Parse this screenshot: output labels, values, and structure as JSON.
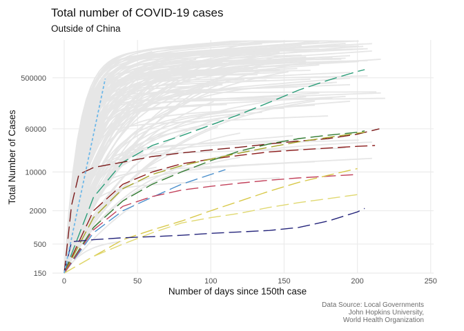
{
  "title": "Total number of COVID-19 cases",
  "subtitle": "Outside of China",
  "caption_lines": [
    "Data Source: Local Governments",
    "John Hopkins University,",
    "World Health Organization"
  ],
  "chart_data": {
    "type": "line",
    "title": "Total number of COVID-19 cases",
    "subtitle": "Outside of China",
    "xlabel": "Number of days since 150th case",
    "ylabel": "Total Number of Cases",
    "xlim": [
      -8,
      252
    ],
    "ylim": [
      150,
      2400000
    ],
    "y_scale": "log",
    "grid": true,
    "legend": "none",
    "x_ticks": [
      0,
      50,
      100,
      150,
      200,
      250
    ],
    "y_ticks": [
      150,
      500,
      2000,
      10000,
      60000,
      500000
    ],
    "x_tick_labels": [
      "0",
      "50",
      "100",
      "150",
      "200",
      "250"
    ],
    "y_tick_labels": [
      "150",
      "500",
      "2000",
      "10000",
      "60000",
      "500000"
    ],
    "colors": {
      "background_series": "#e6e6e6",
      "grid": "#ebebeb",
      "reference": "#6fb8e8"
    },
    "reference_line": {
      "style": "dashed",
      "x": [
        0,
        28
      ],
      "y": [
        150,
        480000
      ]
    },
    "highlighted_series": [
      {
        "color": "#2a9d78",
        "x": [
          0,
          20,
          40,
          60,
          80,
          100,
          120,
          140,
          160,
          180,
          200,
          205
        ],
        "y": [
          150,
          3500,
          15000,
          30000,
          45000,
          70000,
          110000,
          180000,
          300000,
          450000,
          650000,
          700000
        ]
      },
      {
        "color": "#7a1818",
        "x": [
          0,
          5,
          10,
          20,
          30,
          40,
          60,
          80,
          100,
          120,
          140,
          160,
          180,
          200,
          215
        ],
        "y": [
          150,
          2500,
          9000,
          12000,
          13500,
          15000,
          19000,
          22000,
          25000,
          28000,
          32000,
          36000,
          40000,
          48000,
          60000
        ]
      },
      {
        "color": "#8b1a1a",
        "x": [
          0,
          20,
          40,
          60,
          80,
          100,
          120,
          140,
          160,
          180,
          200,
          212
        ],
        "y": [
          150,
          2000,
          6000,
          10000,
          14000,
          17000,
          20000,
          23000,
          25000,
          27000,
          29000,
          30000
        ]
      },
      {
        "color": "#2f7a2f",
        "x": [
          0,
          20,
          40,
          60,
          80,
          100,
          120,
          140,
          160,
          180,
          200,
          205
        ],
        "y": [
          150,
          1000,
          3000,
          6000,
          10000,
          16000,
          24000,
          32000,
          40000,
          46000,
          52000,
          55000
        ]
      },
      {
        "color": "#a3a326",
        "x": [
          0,
          20,
          40,
          60,
          80,
          100,
          120,
          140,
          160,
          180,
          200,
          205
        ],
        "y": [
          150,
          1500,
          5000,
          9000,
          13000,
          17000,
          22000,
          28000,
          35000,
          42000,
          50000,
          52000
        ]
      },
      {
        "color": "#4a8fcc",
        "x": [
          0,
          20,
          40,
          60,
          80,
          100,
          110
        ],
        "y": [
          150,
          800,
          2000,
          3500,
          6000,
          9000,
          11000
        ]
      },
      {
        "color": "#c2405a",
        "x": [
          0,
          20,
          40,
          60,
          80,
          100,
          120,
          140,
          160,
          180,
          200
        ],
        "y": [
          150,
          900,
          2400,
          3600,
          4700,
          5500,
          6300,
          7100,
          7800,
          8400,
          9000
        ]
      },
      {
        "color": "#d8c848",
        "x": [
          0,
          20,
          40,
          60,
          80,
          100,
          120,
          140,
          160,
          180,
          200
        ],
        "y": [
          150,
          300,
          600,
          900,
          1300,
          2000,
          3000,
          4500,
          6500,
          8700,
          11500
        ]
      },
      {
        "color": "#e0d870",
        "x": [
          0,
          20,
          40,
          60,
          80,
          100,
          120,
          140,
          160,
          180,
          200
        ],
        "y": [
          150,
          300,
          500,
          800,
          1200,
          1500,
          1800,
          2300,
          2800,
          3300,
          3900
        ]
      },
      {
        "color": "#23237a",
        "x": [
          0,
          5,
          20,
          40,
          60,
          80,
          100,
          120,
          140,
          160,
          180,
          200,
          205
        ],
        "y": [
          150,
          550,
          600,
          650,
          680,
          720,
          780,
          830,
          880,
          1000,
          1300,
          1900,
          2200
        ]
      }
    ]
  }
}
